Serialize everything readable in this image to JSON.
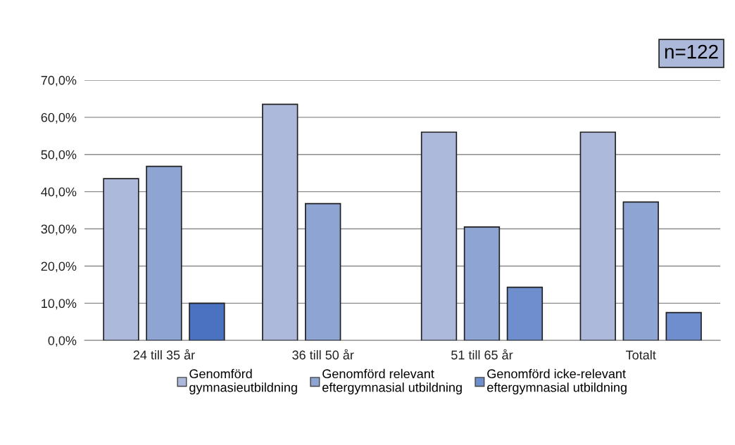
{
  "chart_data": {
    "type": "bar",
    "categories": [
      "24 till 35 år",
      "36 till 50 år",
      "51 till 65 år",
      "Totalt"
    ],
    "series": [
      {
        "name": "Genomförd\ngymnasieutbildning",
        "color": "#adb9db",
        "values": [
          43.5,
          63.5,
          56.0,
          56.0
        ]
      },
      {
        "name": "Genomförd relevant\neftergymnasial utbildning",
        "color": "#8ea4d3",
        "values": [
          46.8,
          36.8,
          30.5,
          37.2
        ]
      },
      {
        "name": "Genomförd icke-relevant\neftergymnasial utbildning",
        "color": "#6f8ecd",
        "colors": [
          "#4a72c0",
          null,
          "#6f8ecd",
          "#6f8ecd"
        ],
        "values": [
          10.0,
          null,
          14.3,
          7.5
        ]
      }
    ],
    "ylim": [
      0,
      70
    ],
    "yticks": [
      {
        "value": 0,
        "label": "0,0%"
      },
      {
        "value": 10,
        "label": "10,0%"
      },
      {
        "value": 20,
        "label": "20,0%"
      },
      {
        "value": 30,
        "label": "30,0%"
      },
      {
        "value": 40,
        "label": "40,0%"
      },
      {
        "value": 50,
        "label": "50,0%"
      },
      {
        "value": 60,
        "label": "60,0%"
      },
      {
        "value": 70,
        "label": "70,0%"
      }
    ],
    "grid": "y",
    "legend": "bottom",
    "annotations": [
      "n=122"
    ]
  }
}
